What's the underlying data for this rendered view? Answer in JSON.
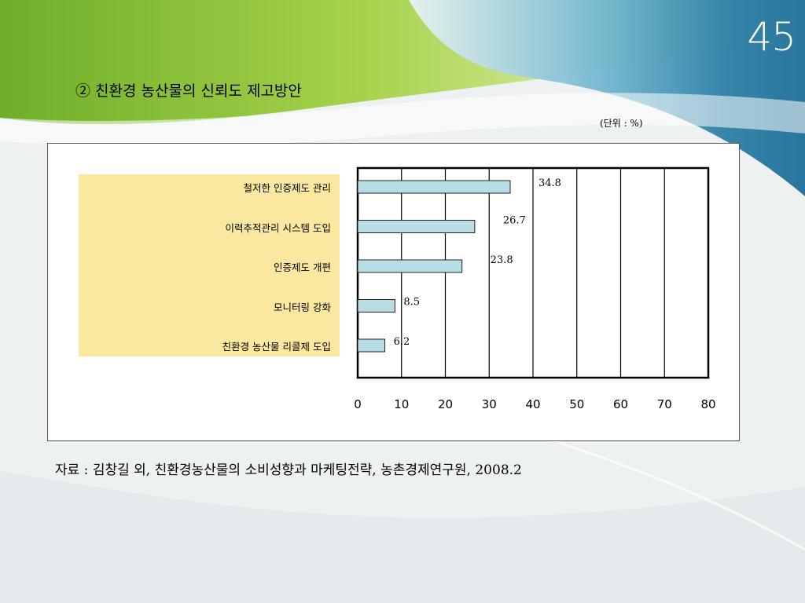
{
  "slide": {
    "number": "45",
    "title": "② 친환경 농산물의 신뢰도 제고방안",
    "unit_note": "(단위 : %)",
    "source": "자료 : 김창길 외, 친환경농산물의 소비성향과 마케팅전략, 농촌경제연구원, 2008.2"
  },
  "colors": {
    "bar_fill": "#b9dde4",
    "label_box": "#fae8a0",
    "header_green": "#8cc63f"
  },
  "chart_data": {
    "type": "bar",
    "orientation": "horizontal",
    "title": "",
    "xlabel": "",
    "ylabel": "",
    "categories": [
      "철저한 인증제도 관리",
      "이력추적관리 시스템 도입",
      "인증제도 개편",
      "모니터링 강화",
      "친환경 농산물 리콜제 도입"
    ],
    "values": [
      34.8,
      26.7,
      23.8,
      8.5,
      6.2
    ],
    "value_labels": [
      "34.8",
      "26.7",
      "23.8",
      "8.5",
      "6.2"
    ],
    "xlim": [
      0,
      80
    ],
    "xticks": [
      "0",
      "10",
      "20",
      "30",
      "40",
      "50",
      "60",
      "70",
      "80"
    ],
    "grid": "vertical"
  }
}
